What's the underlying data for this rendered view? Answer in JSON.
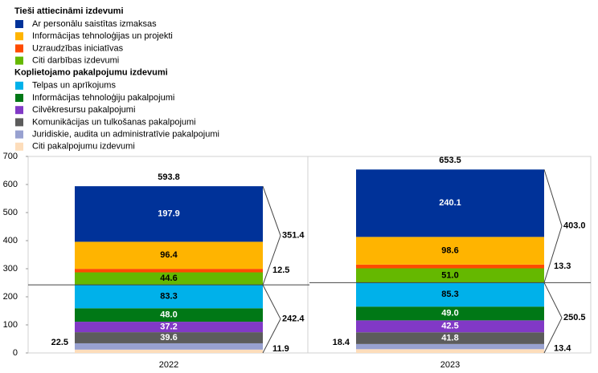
{
  "chart_data": {
    "type": "stacked_bar",
    "categories": [
      "2022",
      "2023"
    ],
    "ylim": [
      0,
      700
    ],
    "yticks": [
      0,
      100,
      200,
      300,
      400,
      500,
      600,
      700
    ],
    "totals": [
      593.8,
      653.5
    ],
    "groups": [
      {
        "title": "Tieši attiecināmi izdevumi",
        "totals": [
          351.4,
          403.0
        ],
        "total_labels": [
          "351.4",
          "403.0"
        ],
        "series": [
          {
            "name": "Ar personālu saistītas izmaksas",
            "color": "#003299",
            "label_color": "#ffffff",
            "label_position": "inside",
            "values": [
              197.9,
              240.1
            ],
            "value_labels": [
              "197.9",
              "240.1"
            ]
          },
          {
            "name": "Informācijas tehnoloģijas un projekti",
            "color": "#ffb400",
            "label_color": "#000000",
            "label_position": "inside",
            "values": [
              96.4,
              98.6
            ],
            "value_labels": [
              "96.4",
              "98.6"
            ]
          },
          {
            "name": "Uzraudzības iniciatīvas",
            "color": "#ff4b00",
            "label_color": "#000000",
            "label_position": "right",
            "values": [
              12.5,
              13.3
            ],
            "value_labels": [
              "12.5",
              "13.3"
            ]
          },
          {
            "name": "Citi darbības izdevumi",
            "color": "#65b800",
            "label_color": "#000000",
            "label_position": "inside",
            "values": [
              44.6,
              51.0
            ],
            "value_labels": [
              "44.6",
              "51.0"
            ]
          }
        ]
      },
      {
        "title": "Koplietojamo pakalpojumu izdevumi",
        "totals": [
          242.4,
          250.5
        ],
        "total_labels": [
          "242.4",
          "250.5"
        ],
        "series": [
          {
            "name": "Telpas un aprīkojums",
            "color": "#00b1ea",
            "label_color": "#000000",
            "label_position": "inside",
            "values": [
              83.3,
              85.3
            ],
            "value_labels": [
              "83.3",
              "85.3"
            ]
          },
          {
            "name": "Informācijas tehnoloģiju pakalpojumi",
            "color": "#007816",
            "label_color": "#ffffff",
            "label_position": "inside",
            "values": [
              48.0,
              49.0
            ],
            "value_labels": [
              "48.0",
              "49.0"
            ]
          },
          {
            "name": "Cilvēkresursu pakalpojumi",
            "color": "#8139c6",
            "label_color": "#ffffff",
            "label_position": "inside",
            "values": [
              37.2,
              42.5
            ],
            "value_labels": [
              "37.2",
              "42.5"
            ]
          },
          {
            "name": "Komunikācijas un tulkošanas pakalpojumi",
            "color": "#5c5c5c",
            "label_color": "#ffffff",
            "label_position": "inside",
            "values": [
              39.6,
              41.8
            ],
            "value_labels": [
              "39.6",
              "41.8"
            ]
          },
          {
            "name": "Juridiskie, audita un administratīvie pakalpojumi",
            "color": "#98a1d0",
            "label_color": "#000000",
            "label_position": "left",
            "values": [
              22.5,
              18.4
            ],
            "value_labels": [
              "22.5",
              "18.4"
            ]
          },
          {
            "name": "Citi pakalpojumu izdevumi",
            "color": "#fdddbb",
            "label_color": "#000000",
            "label_position": "right",
            "values": [
              11.9,
              13.4
            ],
            "value_labels": [
              "11.9",
              "13.4"
            ]
          }
        ]
      }
    ]
  }
}
